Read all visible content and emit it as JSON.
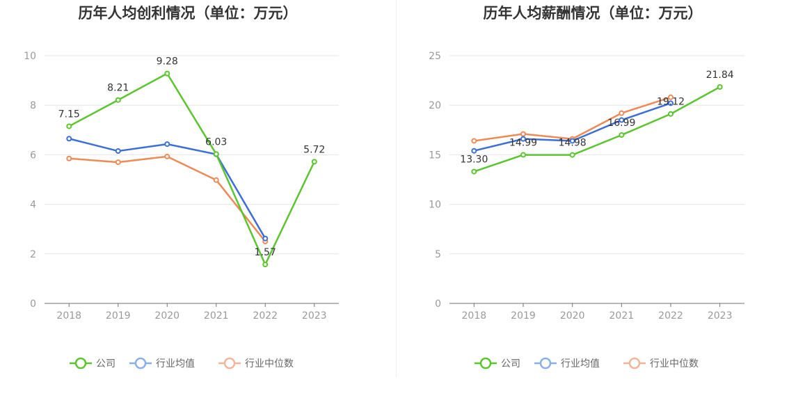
{
  "chart_data": [
    {
      "type": "line",
      "title": "历年人均创利情况（单位：万元）",
      "categories": [
        "2018",
        "2019",
        "2020",
        "2021",
        "2022",
        "2023"
      ],
      "ylim": [
        0,
        10
      ],
      "yticks": [
        0,
        2,
        4,
        6,
        8,
        10
      ],
      "grid": true,
      "legend_position": "bottom",
      "series": [
        {
          "name": "公司",
          "color": "#5ac52d",
          "values": [
            7.15,
            8.21,
            9.28,
            6.03,
            1.57,
            5.72
          ],
          "labels": [
            "7.15",
            "8.21",
            "9.28",
            "6.03",
            "1.57",
            "5.72"
          ]
        },
        {
          "name": "行业均值",
          "color": "#3a6fd8",
          "values": [
            6.65,
            6.15,
            6.43,
            6.02,
            2.62,
            null
          ]
        },
        {
          "name": "行业中位数",
          "color": "#ee8a55",
          "values": [
            5.85,
            5.7,
            5.93,
            4.98,
            2.5,
            null
          ]
        }
      ]
    },
    {
      "type": "line",
      "title": "历年人均薪酬情况（单位：万元）",
      "categories": [
        "2018",
        "2019",
        "2020",
        "2021",
        "2022",
        "2023"
      ],
      "ylim": [
        0,
        25
      ],
      "yticks": [
        0,
        5,
        10,
        15,
        20,
        25
      ],
      "grid": true,
      "legend_position": "bottom",
      "series": [
        {
          "name": "公司",
          "color": "#5ac52d",
          "values": [
            13.3,
            14.99,
            14.98,
            16.99,
            19.12,
            21.84
          ],
          "labels": [
            "13.30",
            "14.99",
            "14.98",
            "16.99",
            "19.12",
            "21.84"
          ]
        },
        {
          "name": "行业均值",
          "color": "#3a6fd8",
          "values": [
            15.4,
            16.6,
            16.4,
            18.5,
            20.2,
            null
          ]
        },
        {
          "name": "行业中位数",
          "color": "#ee8a55",
          "values": [
            16.4,
            17.1,
            16.6,
            19.2,
            20.8,
            null
          ]
        }
      ]
    }
  ],
  "legend_colors": {
    "公司": "#5ac52d",
    "行业均值": "#8aaee8",
    "行业中位数": "#f5b49a"
  }
}
